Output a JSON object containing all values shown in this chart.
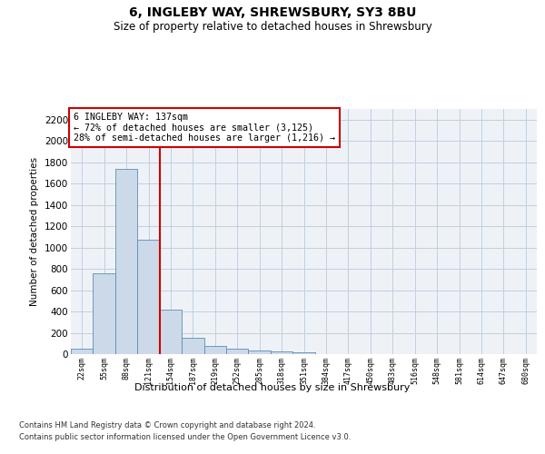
{
  "title": "6, INGLEBY WAY, SHREWSBURY, SY3 8BU",
  "subtitle": "Size of property relative to detached houses in Shrewsbury",
  "xlabel": "Distribution of detached houses by size in Shrewsbury",
  "ylabel": "Number of detached properties",
  "bar_values": [
    55,
    760,
    1740,
    1075,
    420,
    155,
    80,
    47,
    37,
    27,
    18,
    0,
    0,
    0,
    0,
    0,
    0,
    0,
    0,
    0,
    0
  ],
  "bar_labels": [
    "22sqm",
    "55sqm",
    "88sqm",
    "121sqm",
    "154sqm",
    "187sqm",
    "219sqm",
    "252sqm",
    "285sqm",
    "318sqm",
    "351sqm",
    "384sqm",
    "417sqm",
    "450sqm",
    "483sqm",
    "516sqm",
    "548sqm",
    "581sqm",
    "614sqm",
    "647sqm",
    "680sqm"
  ],
  "bar_color": "#ccd9e8",
  "bar_edgecolor": "#5b8db8",
  "ylim": [
    0,
    2300
  ],
  "yticks": [
    0,
    200,
    400,
    600,
    800,
    1000,
    1200,
    1400,
    1600,
    1800,
    2000,
    2200
  ],
  "property_bar_index": 3,
  "vline_color": "#cc0000",
  "annotation_text": "6 INGLEBY WAY: 137sqm\n← 72% of detached houses are smaller (3,125)\n28% of semi-detached houses are larger (1,216) →",
  "annotation_box_color": "#ffffff",
  "annotation_box_edgecolor": "#cc0000",
  "footnote1": "Contains HM Land Registry data © Crown copyright and database right 2024.",
  "footnote2": "Contains public sector information licensed under the Open Government Licence v3.0.",
  "background_color": "#eef2f7",
  "grid_color": "#c0cfe0"
}
